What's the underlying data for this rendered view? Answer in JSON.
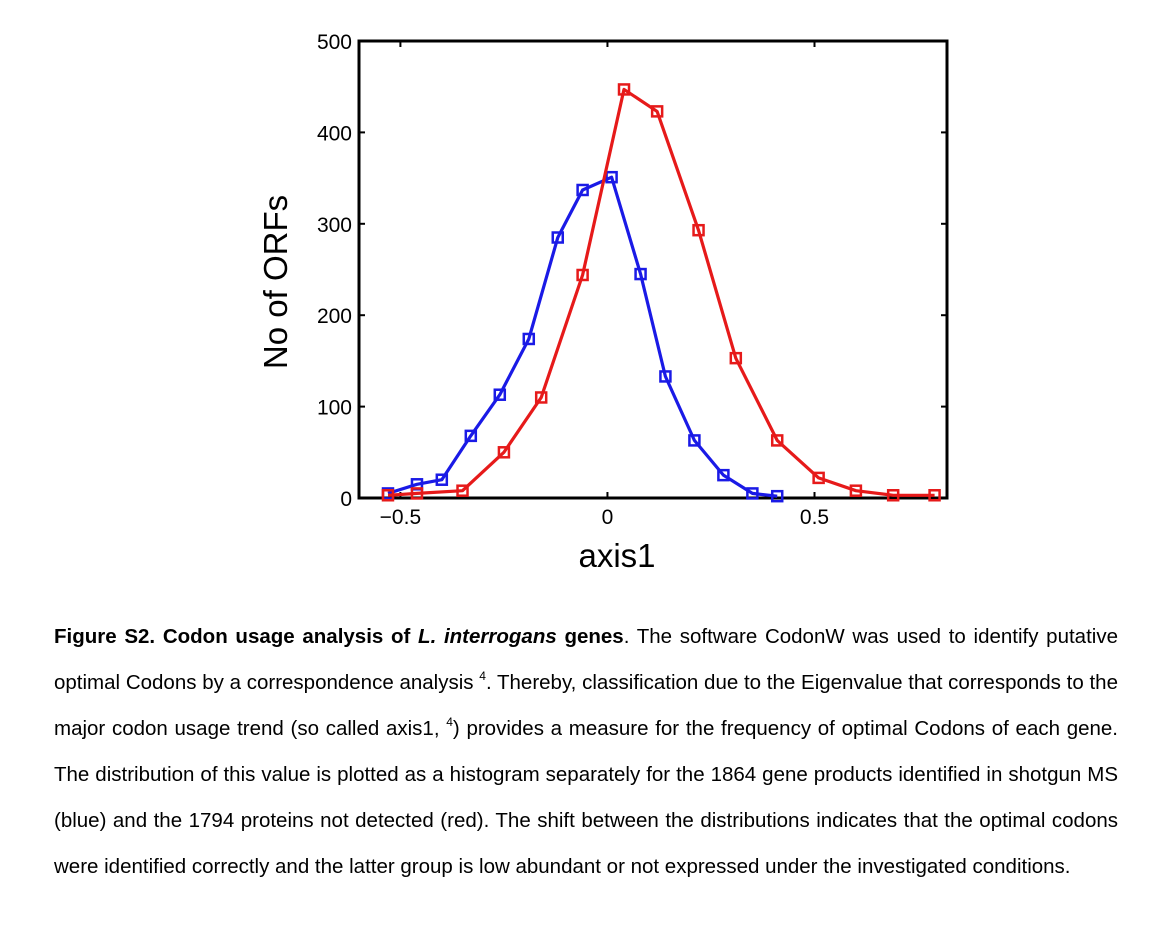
{
  "chart_data": {
    "type": "line",
    "xlabel": "axis1",
    "ylabel": "No of ORFs",
    "xlim": [
      -0.6,
      0.82
    ],
    "ylim": [
      0,
      500
    ],
    "xticks": [
      -0.5,
      0,
      0.5
    ],
    "xtick_labels": [
      "−0.5",
      "0",
      "0.5"
    ],
    "yticks": [
      0,
      100,
      200,
      300,
      400,
      500
    ],
    "ytick_labels": [
      "0",
      "100",
      "200",
      "300",
      "400",
      "500"
    ],
    "grid": false,
    "legend": "none",
    "marker": "square",
    "series": [
      {
        "color": "#1a1ae6",
        "x": [
          -0.53,
          -0.46,
          -0.4,
          -0.33,
          -0.26,
          -0.19,
          -0.12,
          -0.06,
          0.01,
          0.08,
          0.14,
          0.21,
          0.28,
          0.35,
          0.41
        ],
        "y": [
          5,
          15,
          20,
          68,
          113,
          174,
          285,
          337,
          351,
          245,
          133,
          63,
          25,
          5,
          2
        ]
      },
      {
        "color": "#e61a1a",
        "x": [
          -0.53,
          -0.46,
          -0.35,
          -0.25,
          -0.16,
          -0.06,
          0.04,
          0.12,
          0.22,
          0.31,
          0.41,
          0.51,
          0.6,
          0.69,
          0.79
        ],
        "y": [
          3,
          5,
          8,
          50,
          110,
          244,
          447,
          423,
          293,
          153,
          63,
          22,
          8,
          3,
          3
        ]
      }
    ]
  },
  "caption": {
    "label": "Figure S2. Codon usage analysis of ",
    "species": "L. interrogans",
    "label_end": " genes",
    "text_1": ". The software CodonW was used to identify putative optimal Codons by a correspondence analysis ",
    "ref_1": "4",
    "text_2": ". Thereby, classification due to the Eigenvalue that corresponds to the major codon usage trend (so called axis1, ",
    "ref_2": "4",
    "text_3": ") provides a measure for the frequency of optimal Codons of each gene. The distribution of this value is plotted as a histogram separately for the 1864 gene products identified in shotgun MS (blue) and the 1794 proteins not detected (red). The shift between the distributions indicates that the optimal codons were identified correctly and the latter group is low abundant or not expressed under the investigated conditions."
  }
}
